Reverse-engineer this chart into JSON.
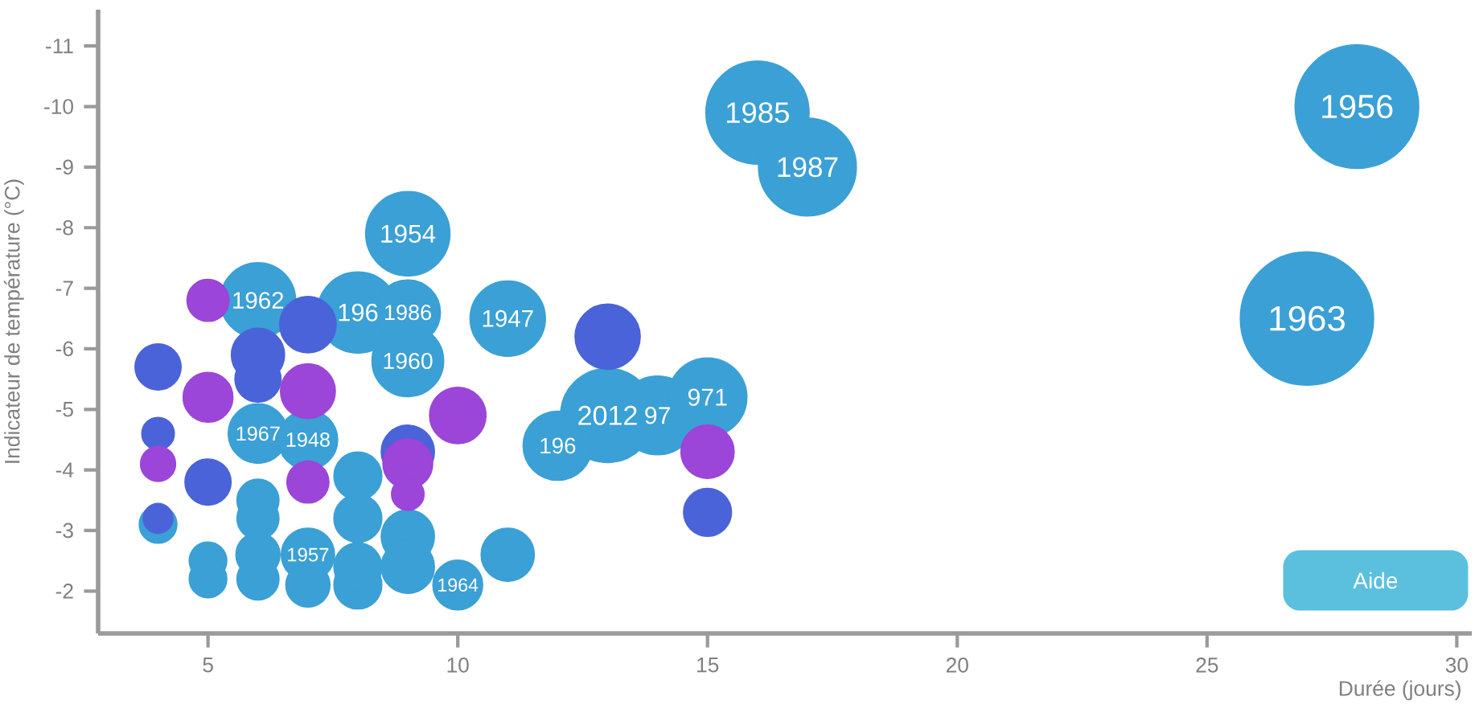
{
  "chart_data": {
    "type": "bubble",
    "xlabel": "Durée (jours)",
    "ylabel": "Indicateur de température (°C)",
    "xlim": [
      2.8,
      30.3
    ],
    "ylim": [
      -1.3,
      -11.6
    ],
    "xticks": [
      5,
      10,
      15,
      20,
      25,
      30
    ],
    "yticks": [
      -11,
      -10,
      -9,
      -8,
      -7,
      -6,
      -5,
      -4,
      -3,
      -2
    ],
    "annotations": [
      "Aide",
      {
        "text": "1956",
        "x": 28,
        "y": -10.0
      },
      {
        "text": "1963",
        "x": 27,
        "y": -6.5
      },
      {
        "text": "1985",
        "x": 16,
        "y": -9.9
      },
      {
        "text": "1987",
        "x": 17,
        "y": -9.0
      },
      {
        "text": "1954",
        "x": 9,
        "y": -7.9
      },
      {
        "text": "1962",
        "x": 6,
        "y": -6.8
      },
      {
        "text": "196",
        "x": 8,
        "y": -6.6
      },
      {
        "text": "1986",
        "x": 9,
        "y": -6.6
      },
      {
        "text": "1960",
        "x": 9,
        "y": -5.8
      },
      {
        "text": "1947",
        "x": 11,
        "y": -6.5
      },
      {
        "text": "2012",
        "x": 13,
        "y": -4.9
      },
      {
        "text": "97",
        "x": 14,
        "y": -4.9
      },
      {
        "text": "971",
        "x": 15,
        "y": -5.2
      },
      {
        "text": "196",
        "x": 12,
        "y": -4.4
      },
      {
        "text": "1967",
        "x": 6,
        "y": -4.6
      },
      {
        "text": "1948",
        "x": 7,
        "y": -4.5
      },
      {
        "text": "1957",
        "x": 7,
        "y": -2.6
      },
      {
        "text": "1964",
        "x": 10,
        "y": -2.1
      }
    ],
    "series": [
      {
        "color": "#3aa0d5",
        "x": [
          28,
          27,
          16,
          17,
          9,
          6,
          8,
          9,
          9,
          11,
          13,
          14,
          15,
          12,
          6,
          7,
          8,
          8,
          6,
          6,
          9,
          9,
          11,
          7,
          6,
          6,
          7,
          8,
          8,
          10,
          5,
          5,
          4
        ],
        "values": [
          -10.0,
          -6.5,
          -9.9,
          -9.0,
          -7.9,
          -6.8,
          -6.6,
          -6.6,
          -5.8,
          -6.5,
          -4.9,
          -4.9,
          -5.2,
          -4.4,
          -4.6,
          -4.5,
          -3.9,
          -3.2,
          -3.5,
          -3.2,
          -2.9,
          -2.4,
          -2.6,
          -2.6,
          -2.6,
          -2.2,
          -2.1,
          -2.1,
          -2.4,
          -2.1,
          -2.5,
          -2.2,
          -3.1
        ],
        "sizes": [
          0.86,
          1,
          0.6,
          0.54,
          0.4,
          0.32,
          0.37,
          0.24,
          0.29,
          0.32,
          0.5,
          0.35,
          0.35,
          0.27,
          0.2,
          0.2,
          0.13,
          0.13,
          0.1,
          0.1,
          0.16,
          0.16,
          0.16,
          0.16,
          0.11,
          0.1,
          0.11,
          0.13,
          0.13,
          0.14,
          0.08,
          0.08,
          0.08
        ]
      },
      {
        "color": "#4b63d8",
        "x": [
          4,
          4,
          4,
          5,
          6,
          6,
          7,
          13,
          9,
          15
        ],
        "values": [
          -5.7,
          -4.6,
          -3.2,
          -3.8,
          -5.9,
          -5.5,
          -6.4,
          -6.2,
          -4.3,
          -3.3
        ],
        "sizes": [
          0.12,
          0.06,
          0.05,
          0.12,
          0.16,
          0.12,
          0.18,
          0.24,
          0.16,
          0.13
        ]
      },
      {
        "color": "#9b45d9",
        "x": [
          5,
          5,
          7,
          10,
          15,
          4,
          7,
          9,
          9
        ],
        "values": [
          -6.8,
          -5.2,
          -5.3,
          -4.9,
          -4.3,
          -4.1,
          -3.8,
          -4.1,
          -3.6
        ],
        "sizes": [
          0.1,
          0.14,
          0.17,
          0.18,
          0.16,
          0.07,
          0.1,
          0.14,
          0.06
        ]
      }
    ]
  }
}
